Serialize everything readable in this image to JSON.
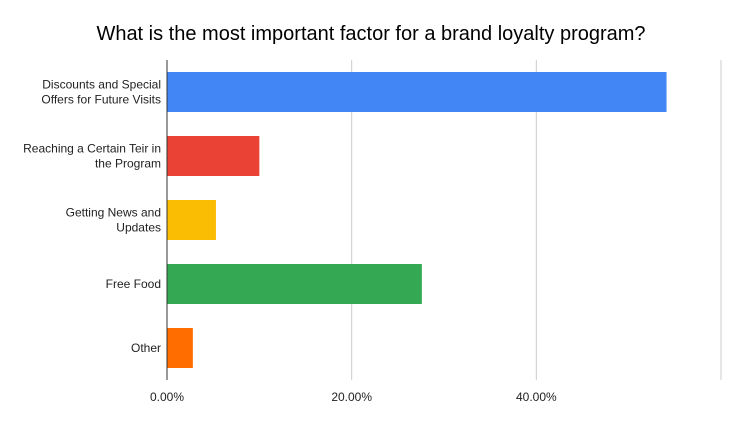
{
  "chart_data": {
    "type": "bar",
    "orientation": "horizontal",
    "title": "What is the most important factor for a brand loyalty program?",
    "categories": [
      [
        "Discounts and Special",
        "Offers for Future Visits"
      ],
      [
        "Reaching a Certain Teir in",
        "the Program"
      ],
      [
        "Getting News and",
        "Updates"
      ],
      [
        "Free Food"
      ],
      [
        "Other"
      ]
    ],
    "values": [
      54.1,
      10.0,
      5.3,
      27.6,
      2.8
    ],
    "colors": [
      "#4285f4",
      "#ea4335",
      "#fbbc04",
      "#34a853",
      "#ff6d01"
    ],
    "x_ticks": [
      0,
      20,
      40,
      60
    ],
    "x_tick_labels": [
      "0.00%",
      "20.00%",
      "40.00%",
      ""
    ],
    "xlim": [
      0,
      60
    ],
    "grid": true,
    "legend": "none"
  }
}
